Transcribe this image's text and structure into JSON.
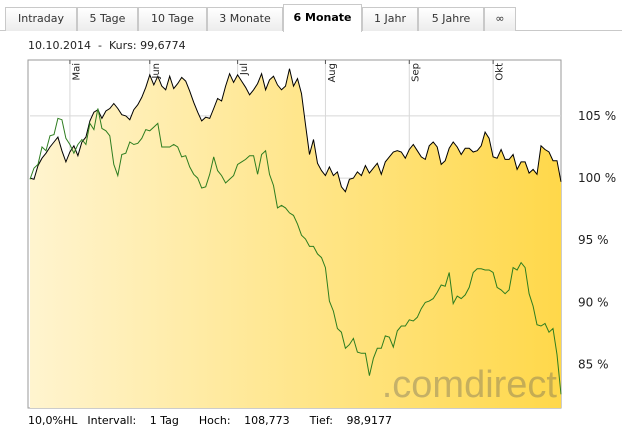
{
  "tabs": [
    {
      "label": "Intraday",
      "active": false
    },
    {
      "label": "5 Tage",
      "active": false
    },
    {
      "label": "10 Tage",
      "active": false
    },
    {
      "label": "3 Monate",
      "active": false
    },
    {
      "label": "6 Monate",
      "active": true
    },
    {
      "label": "1 Jahr",
      "active": false
    },
    {
      "label": "5 Jahre",
      "active": false
    },
    {
      "label": "∞",
      "active": false
    }
  ],
  "info": {
    "date": "10.10.2014",
    "separator": "-",
    "price_label": "Kurs:",
    "price_value": "99,6774"
  },
  "footer": {
    "hl": "10,0%HL",
    "interval_label": "Intervall:",
    "interval_value": "1 Tag",
    "high_label": "Hoch:",
    "high_value": "108,773",
    "low_label": "Tief:",
    "low_value": "98,9177"
  },
  "watermark": ".comdirect",
  "colors": {
    "black_series": "#000000",
    "green_series": "#2e7d1f",
    "fill_light": "#fff4cf",
    "fill_dark": "#ffd84a",
    "grid": "#d8d8d8",
    "tab_border": "#c9c9c9"
  },
  "chart_data": {
    "type": "area",
    "x_month_ticks": [
      "Mai",
      "Jun",
      "Jul",
      "Aug",
      "Sep",
      "Okt"
    ],
    "y_ticks": [
      "105 %",
      "100 %",
      "95 %",
      "90 %",
      "85 %"
    ],
    "y_tick_values": [
      105,
      100,
      95,
      90,
      85
    ],
    "ylim": [
      81.5,
      109.5
    ],
    "n_points": 134,
    "series": [
      {
        "style": "area",
        "values": [
          100,
          99.9,
          101,
          101.6,
          102,
          102.5,
          102.9,
          103.3,
          102.2,
          101.3,
          102.1,
          102.6,
          101.8,
          102.9,
          103.3,
          104.6,
          105.3,
          105.5,
          104.8,
          105.4,
          105.6,
          106,
          105.6,
          105.1,
          105,
          104.7,
          105.5,
          105.9,
          106.5,
          107.3,
          108.3,
          107.5,
          108.2,
          107.4,
          107.1,
          108.2,
          107.2,
          107.6,
          108.1,
          107.8,
          107,
          106.1,
          105.3,
          104.6,
          104.9,
          104.8,
          105.6,
          106.4,
          106.2,
          107.4,
          108.4,
          107.7,
          108.3,
          107.8,
          107.3,
          106.7,
          107.1,
          107.6,
          108.4,
          107.1,
          107.9,
          108.2,
          107.5,
          107.1,
          107.4,
          108.8,
          107.4,
          108,
          106.8,
          104.3,
          101.9,
          103.1,
          101.2,
          100.6,
          100.2,
          100.9,
          100.2,
          100.5,
          99.3,
          98.9,
          99.9,
          100,
          100.5,
          100.2,
          101,
          100.4,
          100.8,
          101.2,
          100.3,
          101.3,
          101.7,
          102.1,
          102.2,
          102.1,
          101.6,
          102.3,
          102.7,
          102.2,
          101.7,
          101.5,
          102.6,
          102.9,
          102.5,
          101.1,
          101.4,
          102.4,
          102.9,
          102.5,
          101.9,
          102.4,
          102.4,
          102.1,
          102.2,
          102.6,
          103.7,
          103.2,
          101.7,
          101.6,
          102.3,
          101.5,
          101.5,
          101.9,
          100.7,
          101.3,
          101.3,
          100.4,
          100.7,
          100.3,
          102.6,
          102.3,
          102.1,
          101.4,
          101.4,
          99.7
        ]
      },
      {
        "style": "line",
        "values": [
          99.9,
          100.8,
          101.1,
          102.5,
          102.2,
          103.4,
          103.5,
          104.8,
          104.7,
          103.2,
          102.7,
          102,
          102.7,
          103.1,
          102.7,
          104.4,
          103.9,
          105.6,
          104,
          103.8,
          103.4,
          101.1,
          100.2,
          101.9,
          102,
          102.9,
          102.7,
          102.8,
          103.2,
          103.9,
          103.8,
          104.1,
          104.4,
          102.5,
          102.5,
          102.5,
          102.7,
          102.5,
          101.7,
          101.8,
          100.9,
          100.3,
          100,
          99.2,
          99.3,
          100.3,
          101.7,
          100.6,
          100.2,
          99.6,
          99.9,
          100.2,
          101.1,
          101.3,
          101.5,
          101.8,
          101.8,
          100.3,
          101.9,
          102.2,
          100.3,
          99.4,
          97.6,
          97.8,
          97.6,
          97.2,
          97,
          96.3,
          95.4,
          95.1,
          94.5,
          94.5,
          93.9,
          93.6,
          92.8,
          90.1,
          89.3,
          87.9,
          87.6,
          86.3,
          86.6,
          87.1,
          86,
          85.9,
          85.9,
          84.1,
          85.5,
          86.3,
          86.3,
          87.3,
          87.2,
          86.4,
          87.7,
          88.1,
          88.1,
          88.6,
          88.5,
          88.8,
          89.5,
          90,
          90.1,
          90.3,
          90.8,
          91.4,
          91.3,
          92.4,
          89.9,
          90.5,
          90.3,
          90.6,
          91.2,
          92.4,
          92.7,
          92.7,
          92.6,
          92.6,
          92.4,
          91.2,
          91,
          90.7,
          91,
          92.8,
          92.6,
          93.2,
          92.8,
          90.7,
          89.7,
          88.2,
          88.1,
          88.3,
          87.6,
          87.9,
          85.8,
          82.6
        ]
      }
    ]
  }
}
